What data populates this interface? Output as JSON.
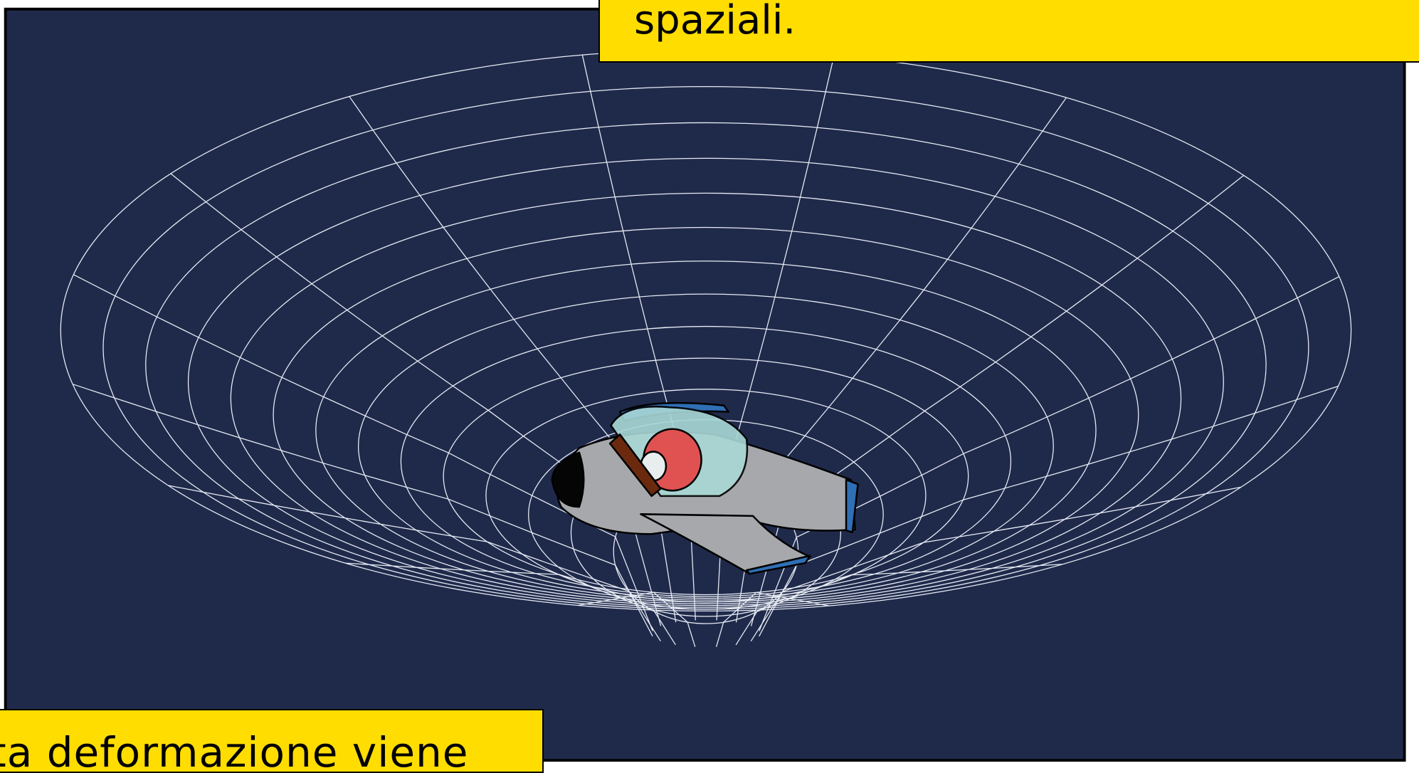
{
  "captions": {
    "top": "spaziali.",
    "bottom": "ta deformazione viene"
  }
}
